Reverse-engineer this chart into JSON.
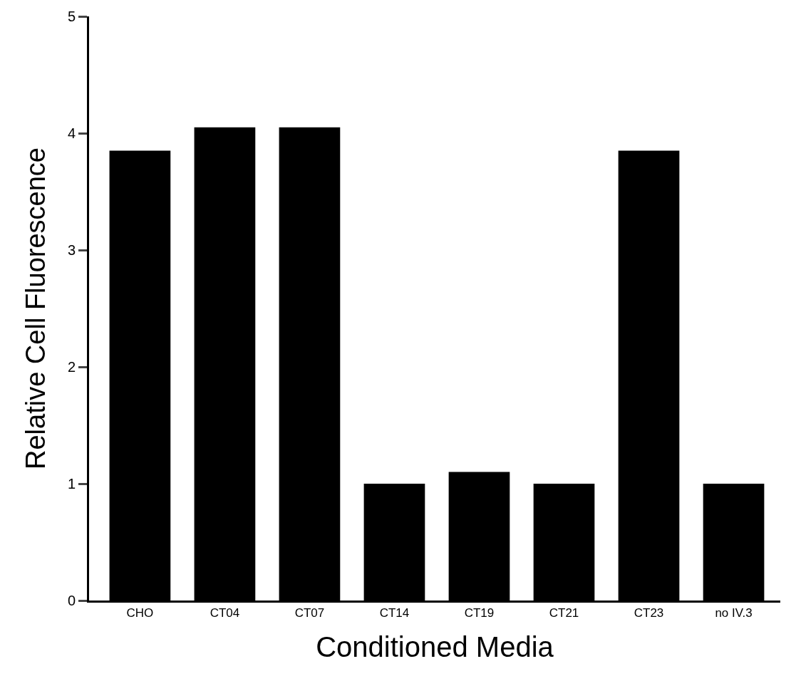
{
  "chart_data": {
    "type": "bar",
    "xlabel": "Conditioned Media",
    "ylabel": "Relative Cell Fluorescence",
    "categories": [
      "CHO",
      "CT04",
      "CT07",
      "CT14",
      "CT19",
      "CT21",
      "CT23",
      "no IV.3"
    ],
    "values": [
      3.85,
      4.05,
      4.05,
      1.0,
      1.1,
      1.0,
      3.85,
      1.0
    ],
    "color": "#000000",
    "ylim": [
      0,
      5
    ],
    "yticks": [
      0,
      1,
      2,
      3,
      4,
      5
    ],
    "grid": false
  }
}
